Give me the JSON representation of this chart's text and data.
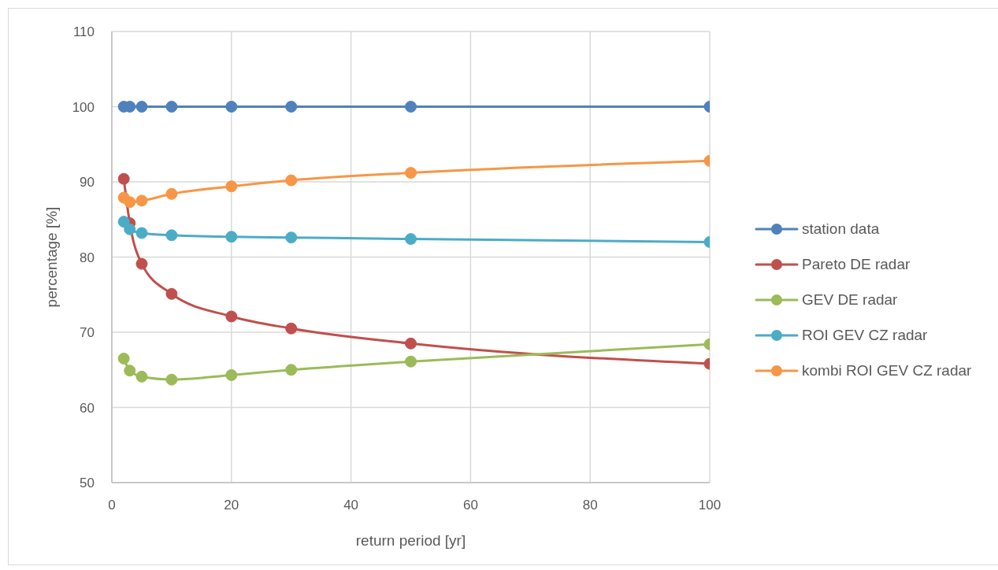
{
  "chart_data": {
    "type": "line",
    "xlabel": "return period [yr]",
    "ylabel": "percentage [%]",
    "x": [
      2,
      3,
      5,
      10,
      20,
      30,
      50,
      100
    ],
    "series": [
      {
        "name": "station data",
        "color": "#4f81bd",
        "values": [
          100,
          100,
          100,
          100,
          100,
          100,
          100,
          100
        ]
      },
      {
        "name": "Pareto DE radar",
        "color": "#c0504d",
        "values": [
          90.4,
          84.5,
          79.1,
          75.1,
          72.1,
          70.5,
          68.5,
          65.8
        ]
      },
      {
        "name": "GEV DE radar",
        "color": "#9bbb59",
        "values": [
          66.5,
          64.9,
          64.1,
          63.7,
          64.3,
          65.0,
          66.1,
          68.4
        ]
      },
      {
        "name": "ROI GEV CZ radar",
        "color": "#4bacc6",
        "values": [
          84.7,
          83.7,
          83.2,
          82.9,
          82.7,
          82.6,
          82.4,
          82.0
        ]
      },
      {
        "name": "kombi ROI GEV CZ radar",
        "color": "#f79646",
        "values": [
          87.9,
          87.3,
          87.5,
          88.4,
          89.4,
          90.2,
          91.2,
          92.8
        ]
      }
    ],
    "xlim": [
      0,
      100
    ],
    "xticks": [
      0,
      20,
      40,
      60,
      80,
      100
    ],
    "ylim": [
      50,
      110
    ],
    "yticks": [
      50,
      60,
      70,
      80,
      90,
      100,
      110
    ],
    "grid": true,
    "legend": "right",
    "marker": "circle",
    "line_style": "solid"
  }
}
